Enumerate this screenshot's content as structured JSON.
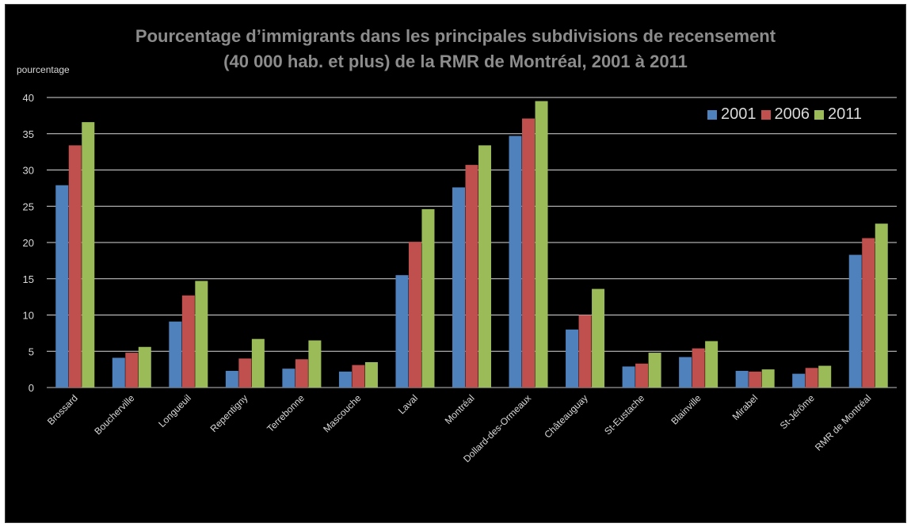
{
  "chart_data": {
    "type": "bar",
    "title_lines": [
      "Pourcentage d’immigrants dans les principales subdivisions de recensement",
      "(40 000 hab. et plus) de la RMR de Montréal, 2001 à 2011"
    ],
    "ylabel": "pourcentage",
    "xlabel": "",
    "ylim": [
      0,
      40
    ],
    "yticks": [
      0,
      5,
      10,
      15,
      20,
      25,
      30,
      35,
      40
    ],
    "grid": true,
    "legend_position": "top-right",
    "categories": [
      "Brossard",
      "Boucherville",
      "Longueuil",
      "Repentigny",
      "Terrebonne",
      "Mascouche",
      "Laval",
      "Montréal",
      "Dollard-des-Ormeaux",
      "Châteauguay",
      "St-Eustache",
      "Blainville",
      "Mirabel",
      "St-Jérôme",
      "RMR de Montréal"
    ],
    "series": [
      {
        "name": "2001",
        "color": "#4f81bd",
        "values": [
          27.9,
          4.1,
          9.1,
          2.3,
          2.6,
          2.2,
          15.5,
          27.6,
          34.7,
          8.0,
          2.9,
          4.2,
          2.3,
          1.9,
          18.3
        ]
      },
      {
        "name": "2006",
        "color": "#c0504d",
        "values": [
          33.4,
          4.8,
          12.7,
          4.0,
          3.9,
          3.1,
          20.1,
          30.7,
          37.1,
          10.0,
          3.3,
          5.4,
          2.2,
          2.7,
          20.6
        ]
      },
      {
        "name": "2011",
        "color": "#9bbb59",
        "values": [
          36.6,
          5.6,
          14.7,
          6.7,
          6.5,
          3.5,
          24.6,
          33.4,
          39.5,
          13.6,
          4.8,
          6.4,
          2.5,
          3.0,
          22.6
        ]
      }
    ]
  }
}
